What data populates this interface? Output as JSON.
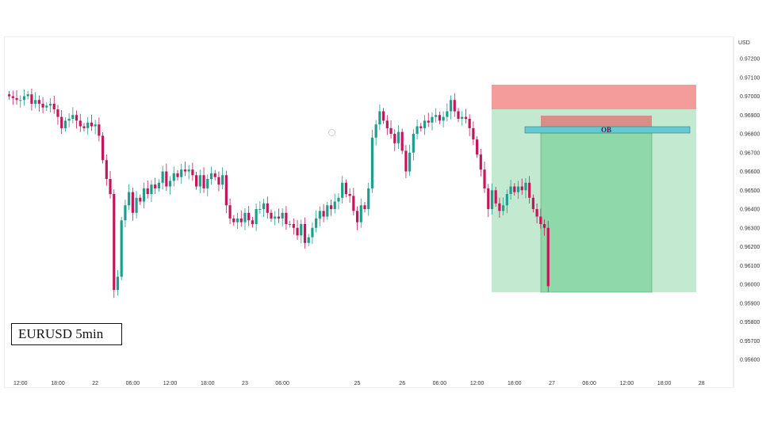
{
  "chart_data": {
    "type": "candlestick",
    "symbol_label": "EURUSD 5min",
    "currency": "USD",
    "ylim": [
      0.955,
      0.9725
    ],
    "price_ticks": [
      "0.97200",
      "0.97100",
      "0.97000",
      "0.96900",
      "0.96800",
      "0.96700",
      "0.96600",
      "0.96500",
      "0.96400",
      "0.96300",
      "0.96200",
      "0.96100",
      "0.96000",
      "0.95900",
      "0.95800",
      "0.95700",
      "0.95600"
    ],
    "time_ticks": [
      {
        "label": "12:00",
        "bar": 3
      },
      {
        "label": "18:00",
        "bar": 13
      },
      {
        "label": "22",
        "bar": 23
      },
      {
        "label": "06:00",
        "bar": 33
      },
      {
        "label": "12:00",
        "bar": 43
      },
      {
        "label": "18:00",
        "bar": 53
      },
      {
        "label": "23",
        "bar": 63
      },
      {
        "label": "06:00",
        "bar": 73
      },
      {
        "label": "25",
        "bar": 93
      },
      {
        "label": "26",
        "bar": 105
      },
      {
        "label": "06:00",
        "bar": 115
      },
      {
        "label": "12:00",
        "bar": 125
      },
      {
        "label": "18:00",
        "bar": 135
      },
      {
        "label": "27",
        "bar": 145
      },
      {
        "label": "06:00",
        "bar": 155
      },
      {
        "label": "12:00",
        "bar": 165
      },
      {
        "label": "18:00",
        "bar": 175
      },
      {
        "label": "28",
        "bar": 185
      }
    ],
    "closes": [
      0.97,
      0.9699,
      0.9698,
      0.9698,
      0.97,
      0.9701,
      0.9696,
      0.9698,
      0.9696,
      0.9694,
      0.9695,
      0.9696,
      0.9693,
      0.9689,
      0.9683,
      0.9687,
      0.9688,
      0.969,
      0.9687,
      0.9684,
      0.9683,
      0.9686,
      0.9684,
      0.9685,
      0.9679,
      0.9666,
      0.9656,
      0.9648,
      0.9597,
      0.9604,
      0.9634,
      0.9642,
      0.9649,
      0.9638,
      0.9646,
      0.9644,
      0.9651,
      0.9648,
      0.9653,
      0.9651,
      0.9654,
      0.966,
      0.9652,
      0.9655,
      0.9659,
      0.9657,
      0.9661,
      0.966,
      0.9661,
      0.9658,
      0.9652,
      0.9658,
      0.9651,
      0.9656,
      0.9659,
      0.9657,
      0.9653,
      0.9658,
      0.9642,
      0.9635,
      0.9633,
      0.9635,
      0.9633,
      0.9638,
      0.9634,
      0.9632,
      0.964,
      0.964,
      0.9643,
      0.9638,
      0.9635,
      0.9636,
      0.9635,
      0.9638,
      0.9632,
      0.9632,
      0.963,
      0.9626,
      0.9632,
      0.9622,
      0.9625,
      0.963,
      0.9635,
      0.9639,
      0.9636,
      0.9642,
      0.964,
      0.9644,
      0.9646,
      0.9654,
      0.9648,
      0.9647,
      0.9639,
      0.9633,
      0.9642,
      0.964,
      0.9651,
      0.9678,
      0.9685,
      0.9692,
      0.9687,
      0.9683,
      0.968,
      0.9675,
      0.9681,
      0.9671,
      0.966,
      0.967,
      0.968,
      0.9684,
      0.9683,
      0.9687,
      0.9686,
      0.9689,
      0.969,
      0.9687,
      0.9689,
      0.9692,
      0.9698,
      0.9692,
      0.9688,
      0.9689,
      0.9688,
      0.9683,
      0.9677,
      0.9669,
      0.9661,
      0.9651,
      0.964,
      0.965,
      0.9643,
      0.9639,
      0.9642,
      0.9648,
      0.9652,
      0.9649,
      0.9652,
      0.965,
      0.9654,
      0.9646,
      0.964,
      0.9636,
      0.9632,
      0.963,
      0.9599
    ],
    "annotations": [
      {
        "type": "stop-loss-zone",
        "color": "#f28b8b"
      },
      {
        "type": "target-zone",
        "color": "#b8e6c9"
      },
      {
        "type": "order-block",
        "label": "OB",
        "color": "#67c9d0"
      }
    ],
    "colors": {
      "bull": "#1f9e8f",
      "bear": "#c2185b",
      "wick": "#555555"
    }
  }
}
